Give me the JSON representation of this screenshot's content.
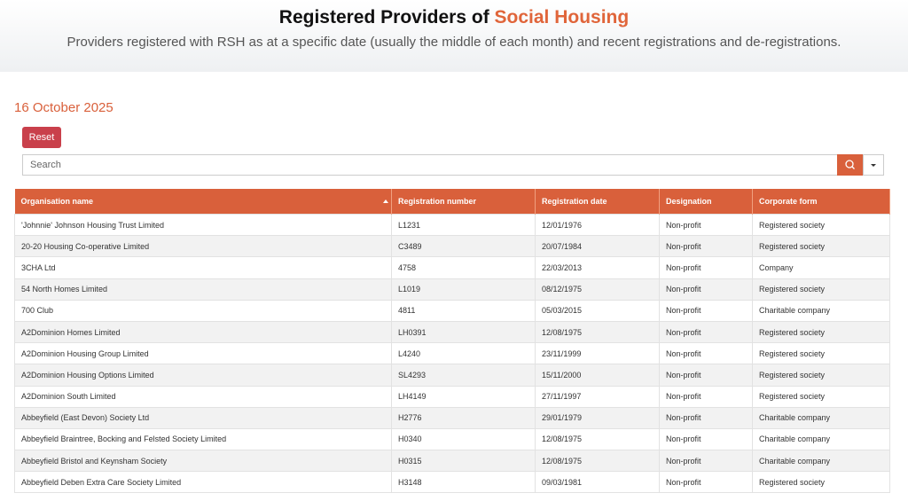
{
  "header": {
    "title": "Registered Providers of",
    "title_highlight": "Social Housing",
    "subtitle": "Providers registered with RSH as at a specific date (usually the middle of each month) and recent registrations and de-registrations."
  },
  "date": "16 October 2025",
  "reset_button": "Reset",
  "search_placeholder": "Search",
  "table": {
    "columns": [
      "Organisation name",
      "Registration number",
      "Registration date",
      "Designation",
      "Corporate form"
    ],
    "rows": [
      [
        "'Johnnie' Johnson Housing Trust Limited",
        "L1231",
        "12/01/1976",
        "Non-profit",
        "Registered society"
      ],
      [
        "20-20 Housing Co-operative Limited",
        "C3489",
        "20/07/1984",
        "Non-profit",
        "Registered society"
      ],
      [
        "3CHA Ltd",
        "4758",
        "22/03/2013",
        "Non-profit",
        "Company"
      ],
      [
        "54 North Homes Limited",
        "L1019",
        "08/12/1975",
        "Non-profit",
        "Registered society"
      ],
      [
        "700 Club",
        "4811",
        "05/03/2015",
        "Non-profit",
        "Charitable company"
      ],
      [
        "A2Dominion Homes Limited",
        "LH0391",
        "12/08/1975",
        "Non-profit",
        "Registered society"
      ],
      [
        "A2Dominion Housing Group Limited",
        "L4240",
        "23/11/1999",
        "Non-profit",
        "Registered society"
      ],
      [
        "A2Dominion Housing Options Limited",
        "SL4293",
        "15/11/2000",
        "Non-profit",
        "Registered society"
      ],
      [
        "A2Dominion South Limited",
        "LH4149",
        "27/11/1997",
        "Non-profit",
        "Registered society"
      ],
      [
        "Abbeyfield (East Devon) Society Ltd",
        "H2776",
        "29/01/1979",
        "Non-profit",
        "Charitable company"
      ],
      [
        "Abbeyfield Braintree, Bocking and Felsted Society Limited",
        "H0340",
        "12/08/1975",
        "Non-profit",
        "Charitable company"
      ],
      [
        "Abbeyfield Bristol and Keynsham Society",
        "H0315",
        "12/08/1975",
        "Non-profit",
        "Charitable company"
      ],
      [
        "Abbeyfield Deben Extra Care Society Limited",
        "H3148",
        "09/03/1981",
        "Non-profit",
        "Registered society"
      ]
    ]
  }
}
